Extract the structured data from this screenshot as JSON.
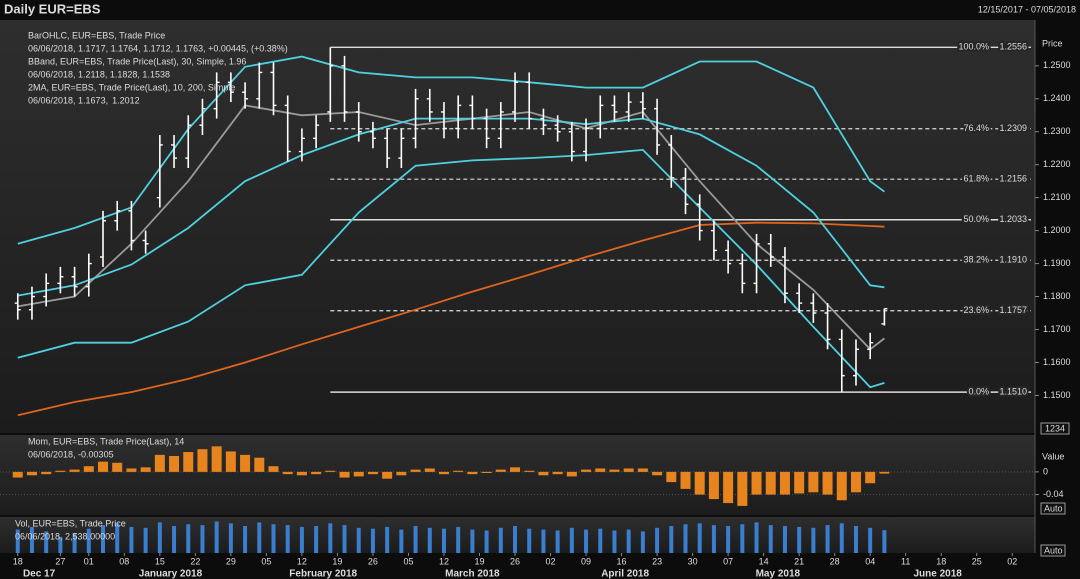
{
  "header": {
    "title": "Daily EUR=EBS",
    "date_range": "12/15/2017 - 07/05/2018"
  },
  "x_axis": {
    "xlim": [
      -2.5,
      143.2
    ],
    "xticks": [
      {
        "value": 0,
        "label": "18"
      },
      {
        "value": 6,
        "label": "27"
      },
      {
        "value": 10,
        "label": "01"
      },
      {
        "value": 15,
        "label": "08"
      },
      {
        "value": 20,
        "label": "15"
      },
      {
        "value": 25,
        "label": "22"
      },
      {
        "value": 30,
        "label": "29"
      },
      {
        "value": 35,
        "label": "05"
      },
      {
        "value": 40,
        "label": "12"
      },
      {
        "value": 45,
        "label": "19"
      },
      {
        "value": 50,
        "label": "26"
      },
      {
        "value": 55,
        "label": "05"
      },
      {
        "value": 60,
        "label": "12"
      },
      {
        "value": 65,
        "label": "19"
      },
      {
        "value": 70,
        "label": "26"
      },
      {
        "value": 75,
        "label": "02"
      },
      {
        "value": 80,
        "label": "09"
      },
      {
        "value": 85,
        "label": "16"
      },
      {
        "value": 90,
        "label": "23"
      },
      {
        "value": 95,
        "label": "30"
      },
      {
        "value": 100,
        "label": "07"
      },
      {
        "value": 105,
        "label": "14"
      },
      {
        "value": 110,
        "label": "21"
      },
      {
        "value": 115,
        "label": "28"
      },
      {
        "value": 120,
        "label": "04"
      },
      {
        "value": 125,
        "label": "11"
      },
      {
        "value": 130,
        "label": "18"
      },
      {
        "value": 135,
        "label": "25"
      },
      {
        "value": 140,
        "label": "02"
      }
    ],
    "months": [
      {
        "value": 3,
        "label": "Dec 17"
      },
      {
        "value": 21.5,
        "label": "January 2018"
      },
      {
        "value": 43,
        "label": "February 2018"
      },
      {
        "value": 64,
        "label": "March 2018"
      },
      {
        "value": 85.5,
        "label": "April 2018"
      },
      {
        "value": 107,
        "label": "May 2018"
      },
      {
        "value": 129.5,
        "label": "June 2018"
      }
    ]
  },
  "chart_data": [
    {
      "type": "ohlc",
      "y_label": "Price",
      "corner_label": "1234",
      "color": "#ffffff",
      "legend": [
        [
          {
            "text": "BarOHLC, EUR=EBS, Trade Price",
            "color": "#ffffff"
          }
        ],
        [
          {
            "text": "06/06/2018, 1.1717, 1.1764, 1.1712, 1.1763, +0.00445, (+0.38%)",
            "color": "#ffffff"
          }
        ],
        [
          {
            "text": "BBand, EUR=EBS, Trade Price(Last), 30, Simple, 1.96",
            "color": "#4fd0e0"
          }
        ],
        [
          {
            "text": "06/06/2018, 1.2118, 1.1828, 1.1538",
            "color": "#4fd0e0"
          }
        ],
        [
          {
            "text": "2MA, EUR=EBS, Trade Price(Last), 10, 200, Simple",
            "color": "#9a9a9a"
          }
        ],
        [
          {
            "text": "06/06/2018, 1.1673,",
            "color": "#9a9a9a"
          },
          {
            "text": "1.2012",
            "color": "#e0641e"
          }
        ]
      ],
      "ylim": [
        1.1386,
        1.2639
      ],
      "yticks": [
        {
          "value": 1.15,
          "label": "1.1500"
        },
        {
          "value": 1.16,
          "label": "1.1600"
        },
        {
          "value": 1.17,
          "label": "1.1700"
        },
        {
          "value": 1.18,
          "label": "1.1800"
        },
        {
          "value": 1.19,
          "label": "1.1900"
        },
        {
          "value": 1.2,
          "label": "1.2000"
        },
        {
          "value": 1.21,
          "label": "1.2100"
        },
        {
          "value": 1.22,
          "label": "1.2200"
        },
        {
          "value": 1.23,
          "label": "1.2300"
        },
        {
          "value": 1.24,
          "label": "1.2400"
        },
        {
          "value": 1.25,
          "label": "1.2500"
        }
      ],
      "x": [
        0,
        2,
        4,
        6,
        8,
        10,
        12,
        14,
        16,
        18,
        20,
        22,
        24,
        26,
        28,
        30,
        32,
        34,
        36,
        38,
        40,
        42,
        44,
        46,
        48,
        50,
        52,
        54,
        56,
        58,
        60,
        62,
        64,
        66,
        68,
        70,
        72,
        74,
        76,
        78,
        80,
        82,
        84,
        86,
        88,
        90,
        92,
        94,
        96,
        98,
        100,
        102,
        104,
        106,
        108,
        110,
        112,
        114,
        116,
        118,
        120,
        122
      ],
      "open": [
        1.178,
        1.176,
        1.18,
        1.184,
        1.186,
        1.183,
        1.192,
        1.203,
        1.206,
        1.197,
        1.21,
        1.226,
        1.222,
        1.232,
        1.237,
        1.245,
        1.242,
        1.24,
        1.248,
        1.238,
        1.224,
        1.228,
        1.236,
        1.25,
        1.236,
        1.23,
        1.228,
        1.222,
        1.228,
        1.24,
        1.236,
        1.231,
        1.238,
        1.234,
        1.228,
        1.236,
        1.245,
        1.234,
        1.232,
        1.23,
        1.224,
        1.231,
        1.238,
        1.236,
        1.239,
        1.237,
        1.226,
        1.216,
        1.208,
        1.2,
        1.194,
        1.19,
        1.184,
        1.196,
        1.192,
        1.181,
        1.178,
        1.175,
        1.167,
        1.156,
        1.164,
        1.1717
      ],
      "high": [
        1.181,
        1.183,
        1.187,
        1.189,
        1.189,
        1.193,
        1.206,
        1.209,
        1.209,
        1.2,
        1.229,
        1.229,
        1.235,
        1.24,
        1.248,
        1.248,
        1.245,
        1.251,
        1.251,
        1.241,
        1.231,
        1.235,
        1.2556,
        1.253,
        1.239,
        1.233,
        1.231,
        1.231,
        1.243,
        1.243,
        1.239,
        1.241,
        1.241,
        1.237,
        1.239,
        1.248,
        1.248,
        1.237,
        1.235,
        1.233,
        1.234,
        1.241,
        1.241,
        1.242,
        1.242,
        1.24,
        1.229,
        1.219,
        1.211,
        1.203,
        1.197,
        1.193,
        1.199,
        1.199,
        1.195,
        1.184,
        1.181,
        1.178,
        1.17,
        1.167,
        1.169,
        1.1764
      ],
      "low": [
        1.173,
        1.173,
        1.177,
        1.181,
        1.18,
        1.18,
        1.189,
        1.2,
        1.194,
        1.193,
        1.207,
        1.219,
        1.219,
        1.229,
        1.234,
        1.239,
        1.237,
        1.237,
        1.235,
        1.221,
        1.221,
        1.225,
        1.233,
        1.233,
        1.227,
        1.225,
        1.219,
        1.219,
        1.225,
        1.233,
        1.228,
        1.228,
        1.231,
        1.225,
        1.225,
        1.233,
        1.231,
        1.229,
        1.227,
        1.221,
        1.221,
        1.228,
        1.233,
        1.233,
        1.234,
        1.223,
        1.213,
        1.205,
        1.197,
        1.191,
        1.187,
        1.181,
        1.181,
        1.189,
        1.178,
        1.175,
        1.172,
        1.164,
        1.151,
        1.153,
        1.161,
        1.1712
      ],
      "close": [
        1.176,
        1.18,
        1.184,
        1.186,
        1.183,
        1.19,
        1.203,
        1.206,
        1.197,
        1.196,
        1.226,
        1.222,
        1.232,
        1.237,
        1.245,
        1.242,
        1.24,
        1.248,
        1.238,
        1.224,
        1.228,
        1.232,
        1.25,
        1.236,
        1.23,
        1.228,
        1.222,
        1.228,
        1.24,
        1.236,
        1.231,
        1.238,
        1.234,
        1.228,
        1.236,
        1.245,
        1.234,
        1.232,
        1.23,
        1.224,
        1.231,
        1.238,
        1.236,
        1.239,
        1.237,
        1.226,
        1.216,
        1.208,
        1.2,
        1.194,
        1.19,
        1.184,
        1.196,
        1.192,
        1.181,
        1.178,
        1.175,
        1.167,
        1.156,
        1.164,
        1.166,
        1.1763
      ],
      "overlays": [
        {
          "color": "#e0641e",
          "x": [
            0,
            8,
            16,
            24,
            32,
            40,
            48,
            56,
            64,
            72,
            80,
            88,
            96,
            104,
            112,
            120,
            122
          ],
          "values": [
            1.144,
            1.148,
            1.151,
            1.155,
            1.16,
            1.1655,
            1.1708,
            1.176,
            1.1815,
            1.1866,
            1.192,
            1.197,
            1.2017,
            1.2024,
            1.2022,
            1.2014,
            1.2012
          ]
        },
        {
          "color": "#9a9a9a",
          "x": [
            0,
            8,
            16,
            24,
            32,
            40,
            48,
            56,
            64,
            72,
            80,
            88,
            96,
            104,
            112,
            120,
            122
          ],
          "values": [
            1.177,
            1.18,
            1.196,
            1.215,
            1.238,
            1.235,
            1.236,
            1.232,
            1.234,
            1.236,
            1.231,
            1.236,
            1.215,
            1.196,
            1.182,
            1.164,
            1.1673
          ]
        },
        {
          "color": "#4fd0e0",
          "x": [
            0,
            8,
            16,
            24,
            32,
            40,
            48,
            56,
            64,
            72,
            80,
            88,
            96,
            104,
            112,
            120,
            122
          ],
          "values": [
            1.196,
            1.2008,
            1.207,
            1.2308,
            1.2497,
            1.2528,
            1.248,
            1.2465,
            1.2465,
            1.245,
            1.2434,
            1.2434,
            1.2513,
            1.2513,
            1.2434,
            1.215,
            1.2118
          ]
        },
        {
          "color": "#4fd0e0",
          "x": [
            0,
            8,
            16,
            24,
            32,
            40,
            48,
            56,
            64,
            72,
            80,
            88,
            96,
            104,
            112,
            120,
            122
          ],
          "values": [
            1.1803,
            1.1834,
            1.1897,
            1.2008,
            1.215,
            1.2229,
            1.2292,
            1.234,
            1.234,
            1.234,
            1.2323,
            1.234,
            1.2292,
            1.2197,
            1.2055,
            1.1834,
            1.1828
          ]
        },
        {
          "color": "#4fd0e0",
          "x": [
            0,
            8,
            16,
            24,
            32,
            40,
            48,
            56,
            64,
            72,
            80,
            88,
            96,
            104,
            112,
            120,
            122
          ],
          "values": [
            1.1614,
            1.166,
            1.166,
            1.1724,
            1.1834,
            1.1866,
            1.2055,
            1.2197,
            1.2213,
            1.222,
            1.2229,
            1.2245,
            1.207,
            1.1897,
            1.1708,
            1.1525,
            1.1538
          ]
        }
      ],
      "levels_from": 44,
      "levels": [
        {
          "label": "100.0%",
          "value": 1.2556,
          "value_label": "1.2556",
          "style": "solid"
        },
        {
          "label": "76.4%",
          "value": 1.2309,
          "value_label": "1.2309",
          "style": "dashed"
        },
        {
          "label": "61.8%",
          "value": 1.2156,
          "value_label": "1.2156",
          "style": "dashed"
        },
        {
          "label": "50.0%",
          "value": 1.2033,
          "value_label": "1.2033",
          "style": "solid"
        },
        {
          "label": "38.2%",
          "value": 1.191,
          "value_label": "1.1910",
          "style": "dashed"
        },
        {
          "label": "23.6%",
          "value": 1.1757,
          "value_label": "1.1757",
          "style": "dashed"
        },
        {
          "label": "0.0%",
          "value": 1.151,
          "value_label": "1.1510",
          "style": "solid"
        }
      ]
    },
    {
      "type": "bar",
      "y_label": "Value",
      "scale_label": "Auto",
      "color": "#e8841e",
      "legend": [
        [
          {
            "text": "Mom, EUR=EBS, Trade Price(Last), 14",
            "color": "#e8841e"
          }
        ],
        [
          {
            "text": "06/06/2018, -0.00305",
            "color": "#e8841e"
          }
        ]
      ],
      "ylim": [
        -0.076,
        0.065
      ],
      "yticks": [
        0,
        -0.04
      ],
      "values": [
        -0.01,
        -0.006,
        -0.004,
        0.002,
        0.004,
        0.01,
        0.018,
        0.016,
        0.006,
        0.008,
        0.03,
        0.028,
        0.035,
        0.04,
        0.045,
        0.036,
        0.03,
        0.025,
        0.01,
        -0.004,
        -0.006,
        -0.004,
        0.002,
        -0.01,
        -0.008,
        -0.004,
        -0.012,
        -0.006,
        0.004,
        0.006,
        -0.004,
        0.002,
        -0.004,
        -0.002,
        0.004,
        0.008,
        0.002,
        -0.006,
        -0.004,
        -0.008,
        0.004,
        0.006,
        0.004,
        0.006,
        0.006,
        -0.006,
        -0.018,
        -0.03,
        -0.04,
        -0.048,
        -0.055,
        -0.06,
        -0.04,
        -0.04,
        -0.04,
        -0.038,
        -0.036,
        -0.04,
        -0.05,
        -0.036,
        -0.02,
        -0.00305
      ]
    },
    {
      "type": "bar",
      "scale_label": "Auto",
      "color": "#3a7ed0",
      "legend": [
        [
          {
            "text": "Vol, EUR=EBS, Trade Price",
            "color": "#3a8ee0"
          }
        ],
        [
          {
            "text": "06/06/2018, 2,538.00000",
            "color": "#3a8ee0"
          }
        ]
      ],
      "ylim": [
        0,
        4000
      ],
      "values": [
        2600,
        2900,
        2400,
        1800,
        2200,
        2700,
        3100,
        3300,
        2900,
        2800,
        3400,
        3000,
        3200,
        3100,
        3500,
        3300,
        3000,
        3400,
        3200,
        3100,
        2900,
        3000,
        3300,
        3100,
        2800,
        2700,
        2900,
        2600,
        3000,
        2800,
        2700,
        2900,
        2600,
        2500,
        2800,
        3000,
        2700,
        2600,
        2500,
        2800,
        2600,
        2700,
        2500,
        2600,
        2400,
        2800,
        3000,
        3200,
        3300,
        3100,
        3000,
        3200,
        3400,
        3100,
        3000,
        2900,
        2800,
        3100,
        3300,
        3000,
        2800,
        2538
      ]
    }
  ]
}
